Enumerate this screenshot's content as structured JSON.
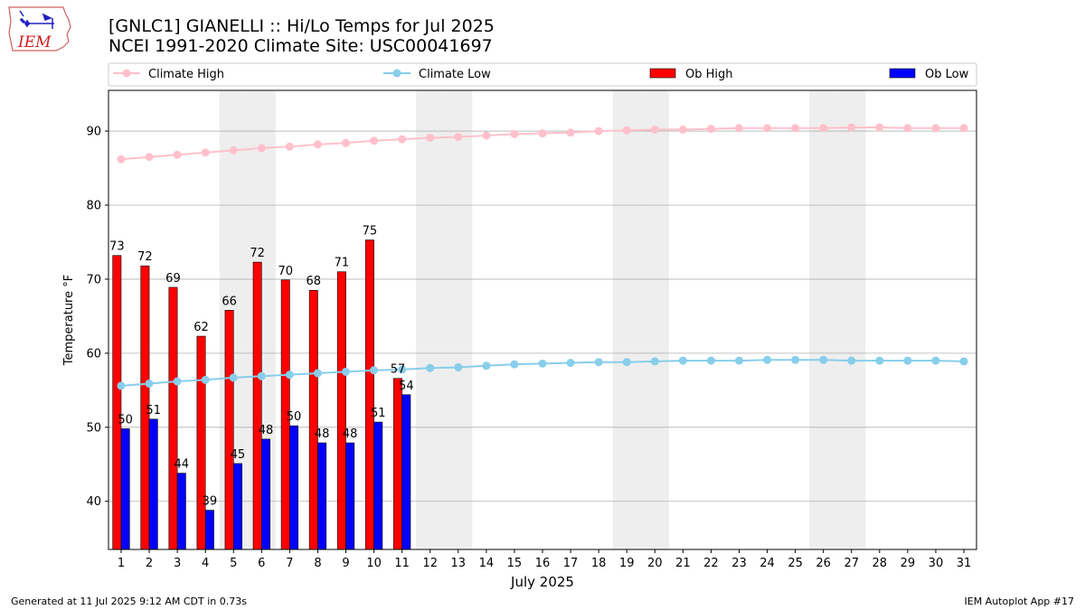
{
  "header": {
    "title": "[GNLC1] GIANELLI :: Hi/Lo Temps for Jul 2025",
    "subtitle": "NCEI 1991-2020 Climate Site: USC00041697",
    "logo_text": "IEM"
  },
  "footer": {
    "left": "Generated at 11 Jul 2025 9:12 AM CDT in 0.73s",
    "right": "IEM Autoplot App #17"
  },
  "colors": {
    "ob_high": "#ff0000",
    "ob_low": "#0000ff",
    "climate_high": "#ffc0cb",
    "climate_low": "#87ceeb",
    "weekend_shade": "#eeeeee",
    "grid": "#b0b0b0"
  },
  "chart_data": {
    "type": "bar",
    "xlabel": "July 2025",
    "ylabel": "Temperature °F",
    "ylim": [
      33.5,
      95.5
    ],
    "yticks": [
      40,
      50,
      60,
      70,
      80,
      90
    ],
    "grid": "horizontal",
    "legend_placement": "top",
    "days": [
      1,
      2,
      3,
      4,
      5,
      6,
      7,
      8,
      9,
      10,
      11,
      12,
      13,
      14,
      15,
      16,
      17,
      18,
      19,
      20,
      21,
      22,
      23,
      24,
      25,
      26,
      27,
      28,
      29,
      30,
      31
    ],
    "weekend_days": [
      5,
      6,
      12,
      13,
      19,
      20,
      26,
      27
    ],
    "series": [
      {
        "name": "Climate High",
        "type": "line",
        "values": [
          86.2,
          86.5,
          86.8,
          87.1,
          87.4,
          87.7,
          87.9,
          88.2,
          88.4,
          88.7,
          88.9,
          89.1,
          89.2,
          89.4,
          89.6,
          89.7,
          89.8,
          90.0,
          90.1,
          90.2,
          90.2,
          90.3,
          90.4,
          90.4,
          90.4,
          90.4,
          90.5,
          90.5,
          90.4,
          90.4,
          90.4
        ]
      },
      {
        "name": "Climate Low",
        "type": "line",
        "values": [
          55.6,
          55.9,
          56.2,
          56.4,
          56.7,
          56.9,
          57.1,
          57.3,
          57.5,
          57.7,
          57.8,
          58.0,
          58.1,
          58.3,
          58.5,
          58.6,
          58.7,
          58.8,
          58.8,
          58.9,
          59.0,
          59.0,
          59.0,
          59.1,
          59.1,
          59.1,
          59.0,
          59.0,
          59.0,
          59.0,
          58.9
        ]
      },
      {
        "name": "Ob High",
        "type": "bar",
        "values": [
          73.2,
          71.8,
          68.9,
          62.3,
          65.8,
          72.3,
          69.9,
          68.5,
          71.0,
          75.3,
          56.6
        ],
        "labels": [
          "73",
          "72",
          "69",
          "62",
          "66",
          "72",
          "70",
          "68",
          "71",
          "75",
          "57"
        ]
      },
      {
        "name": "Ob Low",
        "type": "bar",
        "values": [
          49.8,
          51.1,
          43.8,
          38.8,
          45.1,
          48.4,
          50.2,
          47.9,
          47.9,
          50.7,
          54.4
        ],
        "labels": [
          "50",
          "51",
          "44",
          "39",
          "45",
          "48",
          "50",
          "48",
          "48",
          "51",
          "54"
        ]
      }
    ]
  }
}
